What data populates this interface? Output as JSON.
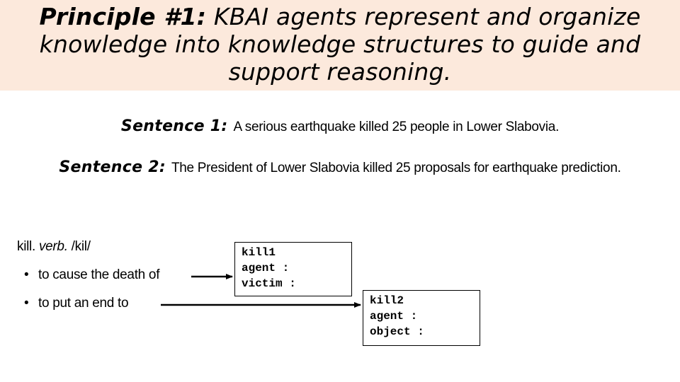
{
  "title": {
    "lead": "Principle #1:",
    "text": "KBAI agents represent and organize knowledge into knowledge structures to guide and support reasoning."
  },
  "sentences": [
    {
      "label": "Sentence 1:",
      "text": "A serious earthquake killed 25 people in Lower Slabovia."
    },
    {
      "label": "Sentence 2:",
      "text": "The President of Lower Slabovia killed 25 proposals for earthquake prediction."
    }
  ],
  "dictionary": {
    "word": "kill.",
    "pos": "verb.",
    "pron": "/kil/",
    "senses": [
      "to cause the death of",
      "to put an end to"
    ]
  },
  "frames": [
    {
      "name": "kill1",
      "slots": [
        "agent :",
        "victim :"
      ]
    },
    {
      "name": "kill2",
      "slots": [
        "agent :",
        "object :"
      ]
    }
  ],
  "colors": {
    "title_band": "#fce9dc",
    "text": "#000000"
  }
}
